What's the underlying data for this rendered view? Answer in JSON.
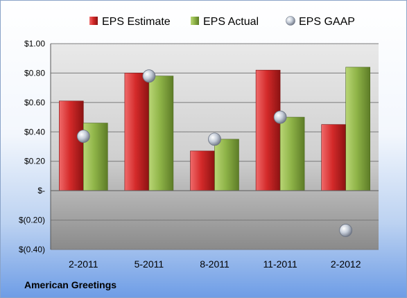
{
  "company": "American Greetings",
  "colors": {
    "estimate": "#d42a2a",
    "actual": "#8fb448",
    "gaap": "#c4ccd8"
  },
  "chart_data": {
    "type": "bar",
    "title": "",
    "xlabel": "",
    "ylabel": "",
    "categories": [
      "2-2011",
      "5-2011",
      "8-2011",
      "11-2011",
      "2-2012"
    ],
    "series": [
      {
        "name": "EPS Estimate",
        "kind": "bar",
        "values": [
          0.61,
          0.8,
          0.27,
          0.82,
          0.45
        ]
      },
      {
        "name": "EPS Actual",
        "kind": "bar",
        "values": [
          0.46,
          0.78,
          0.35,
          0.5,
          0.84
        ]
      },
      {
        "name": "EPS GAAP",
        "kind": "point",
        "values": [
          0.37,
          0.78,
          0.35,
          0.5,
          -0.27
        ]
      }
    ],
    "ylim": [
      -0.4,
      1.0
    ],
    "yticks": [
      1.0,
      0.8,
      0.6,
      0.4,
      0.2,
      0,
      -0.2,
      -0.4
    ],
    "ytick_labels": [
      "$1.00",
      "$0.80",
      "$0.60",
      "$0.40",
      "$0.20",
      "$-",
      "$(0.20)",
      "$(0.40)"
    ],
    "legend_position": "top",
    "grid": true
  }
}
